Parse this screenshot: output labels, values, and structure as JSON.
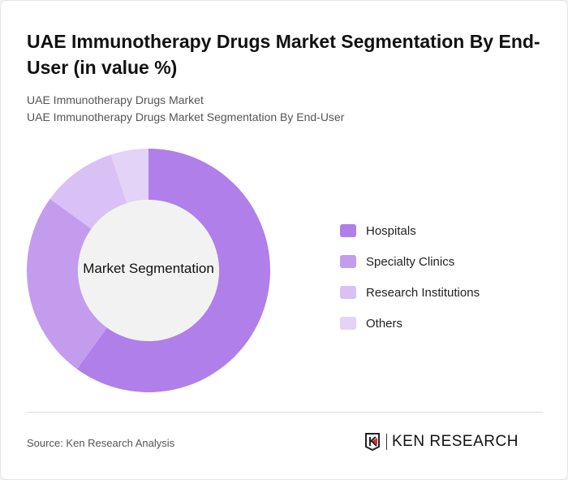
{
  "title": "UAE Immunotherapy Drugs Market Segmentation By End-User (in value %)",
  "subtitle_1": "UAE Immunotherapy Drugs Market",
  "subtitle_2": "UAE Immunotherapy Drugs Market Segmentation By End-User",
  "source": "Source: Ken Research Analysis",
  "logo_text": "KEN RESEARCH",
  "chart_data": {
    "type": "pie",
    "donut": true,
    "center_label": "Market Segmentation",
    "categories": [
      "Hospitals",
      "Specialty Clinics",
      "Research Institutions",
      "Others"
    ],
    "values": [
      60,
      25,
      10,
      5
    ],
    "colors": [
      "#b07fea",
      "#c49ced",
      "#d9c0f5",
      "#e3d3f7"
    ],
    "legend_position": "right"
  }
}
